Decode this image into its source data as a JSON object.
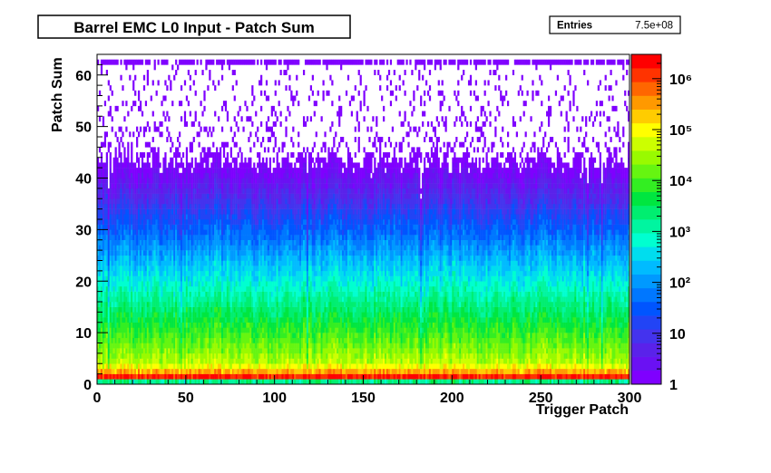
{
  "chart_data": {
    "type": "heatmap",
    "title": "Barrel EMC L0 Input - Patch Sum",
    "xlabel": "Trigger Patch",
    "ylabel": "Patch Sum",
    "xlim": [
      0,
      300
    ],
    "ylim": [
      0,
      64
    ],
    "x_ticks": [
      "0",
      "50",
      "100",
      "150",
      "200",
      "250",
      "300"
    ],
    "y_ticks": [
      "0",
      "10",
      "20",
      "30",
      "40",
      "50",
      "60"
    ],
    "z_scale": "log",
    "zlim": [
      1,
      3000000
    ],
    "z_ticks": [
      "1",
      "10",
      "10²",
      "10³",
      "10⁴",
      "10⁵",
      "10⁶"
    ],
    "stats": {
      "label": "Entries",
      "value": "7.5e+08"
    },
    "palette": [
      "#7f00ff",
      "#6a11f3",
      "#5a22ea",
      "#4433ee",
      "#2244f5",
      "#0055ff",
      "#0077ff",
      "#0099ff",
      "#00bbff",
      "#00ddee",
      "#00ffd0",
      "#00f5a0",
      "#00ee70",
      "#00e640",
      "#33ee22",
      "#66f511",
      "#99fa00",
      "#ccff00",
      "#ffff00",
      "#ffcc00",
      "#ff9900",
      "#ff6600",
      "#ff3300",
      "#ff0000"
    ],
    "grid": false,
    "legend": "color-scale-right"
  }
}
